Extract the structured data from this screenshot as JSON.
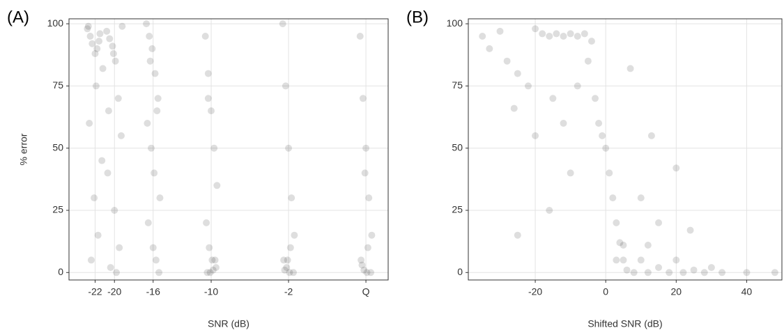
{
  "chart_data": [
    {
      "type": "scatter",
      "panel_label": "(A)",
      "xlabel": "SNR (dB)",
      "ylabel": "% error",
      "xlim": [
        -24.7,
        8.3
      ],
      "ylim": [
        -3,
        102
      ],
      "xticks": [
        -22,
        -20,
        -16,
        -10,
        -2,
        {
          "value": 6,
          "label": "Q"
        }
      ],
      "yticks": [
        0,
        25,
        50,
        75,
        100
      ],
      "grid": true,
      "color": "#000000",
      "alpha": 0.13,
      "x": [
        -22.8,
        -22.5,
        -22.3,
        -22.0,
        -21.8,
        -21.5,
        -22.6,
        -21.3,
        -22.1,
        -21.7,
        -22.4,
        -21.9,
        -21.2,
        -22.7,
        -21.6,
        -20.8,
        -20.5,
        -20.2,
        -19.9,
        -19.6,
        -19.3,
        -20.7,
        -20.0,
        -19.5,
        -20.4,
        -19.8,
        -20.6,
        -19.2,
        -20.1,
        -16.7,
        -16.4,
        -16.1,
        -15.8,
        -15.5,
        -16.6,
        -16.2,
        -15.9,
        -15.3,
        -16.5,
        -16.0,
        -15.7,
        -15.4,
        -16.3,
        -15.6,
        -10.6,
        -10.3,
        -10.0,
        -9.7,
        -9.4,
        -10.5,
        -10.2,
        -9.9,
        -9.5,
        -10.4,
        -10.1,
        -9.8,
        -9.6,
        -10.3,
        -2.6,
        -2.3,
        -2.0,
        -1.7,
        -1.4,
        -2.5,
        -2.2,
        -1.9,
        -1.5,
        -2.4,
        -2.1,
        -1.8,
        5.4,
        5.7,
        6.0,
        6.3,
        6.6,
        5.5,
        5.8,
        6.1,
        6.5,
        5.6,
        6.2,
        5.9
      ],
      "y": [
        98,
        95,
        92,
        88,
        90,
        96,
        60,
        45,
        30,
        15,
        5,
        75,
        82,
        99,
        93,
        97,
        94,
        91,
        85,
        70,
        55,
        40,
        25,
        10,
        2,
        0,
        65,
        99,
        88,
        100,
        95,
        90,
        80,
        70,
        60,
        50,
        40,
        30,
        20,
        10,
        5,
        0,
        85,
        65,
        95,
        80,
        65,
        50,
        35,
        20,
        10,
        5,
        2,
        0,
        0,
        1,
        5,
        70,
        100,
        75,
        50,
        30,
        15,
        5,
        2,
        0,
        0,
        1,
        5,
        10,
        95,
        70,
        50,
        30,
        15,
        5,
        1,
        0,
        0,
        3,
        10,
        40
      ]
    },
    {
      "type": "scatter",
      "panel_label": "(B)",
      "xlabel": "Shifted SNR (dB)",
      "xlim": [
        -39,
        50
      ],
      "ylim": [
        -3,
        102
      ],
      "xticks": [
        -20,
        0,
        20,
        40
      ],
      "yticks": [
        0,
        25,
        50,
        75,
        100
      ],
      "grid": true,
      "color": "#000000",
      "alpha": 0.13,
      "x": [
        -35,
        -33,
        -30,
        -28,
        -25,
        -25,
        -22,
        -20,
        -20,
        -18,
        -16,
        -14,
        -12,
        -10,
        -8,
        -6,
        -4,
        -15,
        -10,
        -12,
        -8,
        -5,
        -3,
        -2,
        -1,
        0,
        1,
        2,
        3,
        4,
        5,
        6,
        8,
        10,
        12,
        15,
        18,
        20,
        22,
        25,
        28,
        30,
        33,
        40,
        48,
        10,
        15,
        20,
        13,
        7,
        -16,
        -26,
        24,
        5,
        12,
        3
      ],
      "y": [
        95,
        90,
        97,
        85,
        80,
        15,
        75,
        98,
        55,
        96,
        95,
        96,
        95,
        96,
        95,
        96,
        93,
        70,
        40,
        60,
        75,
        85,
        70,
        60,
        55,
        50,
        40,
        30,
        20,
        12,
        5,
        1,
        0,
        5,
        0,
        2,
        0,
        5,
        0,
        1,
        0,
        2,
        0,
        0,
        0,
        30,
        20,
        42,
        55,
        82,
        25,
        66,
        17,
        11,
        11,
        5
      ]
    }
  ]
}
